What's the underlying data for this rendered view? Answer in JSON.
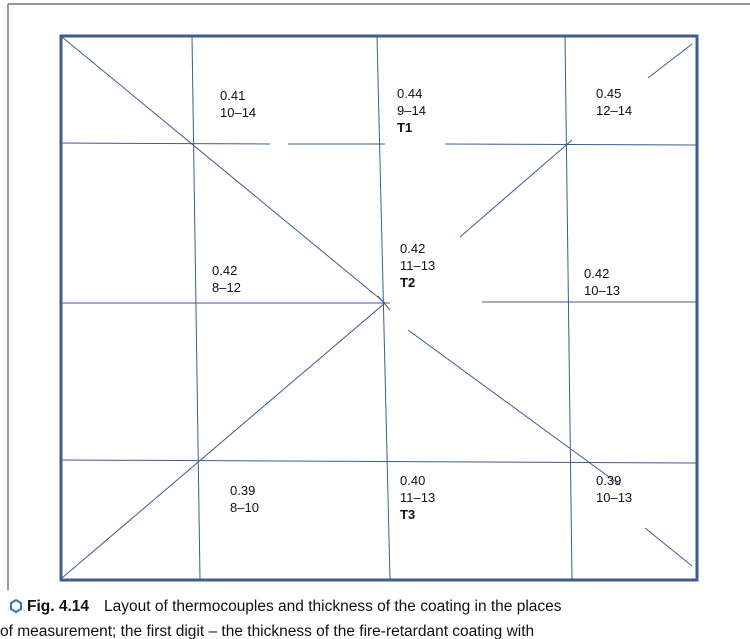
{
  "cells": [
    {
      "thickness": "0.41",
      "range": "10–14"
    },
    {
      "thickness": "0.44",
      "range": "9–14",
      "thermocouple": "T1"
    },
    {
      "thickness": "0.45",
      "range": "12–14"
    },
    {
      "thickness": "0.42",
      "range": "8–12"
    },
    {
      "thickness": "0.42",
      "range": "11–13",
      "thermocouple": "T2"
    },
    {
      "thickness": "0.42",
      "range": "10–13"
    },
    {
      "thickness": "0.39",
      "range": "8–10"
    },
    {
      "thickness": "0.40",
      "range": "11–13",
      "thermocouple": "T3"
    },
    {
      "thickness": "0.39",
      "range": "10–13"
    }
  ],
  "caption": {
    "label": "Fig. 4.14",
    "lines": [
      "Layout of thermocouples and thickness of the coating in the places",
      "of measurement; the first digit – the thickness of the fire-retardant coating with"
    ]
  }
}
